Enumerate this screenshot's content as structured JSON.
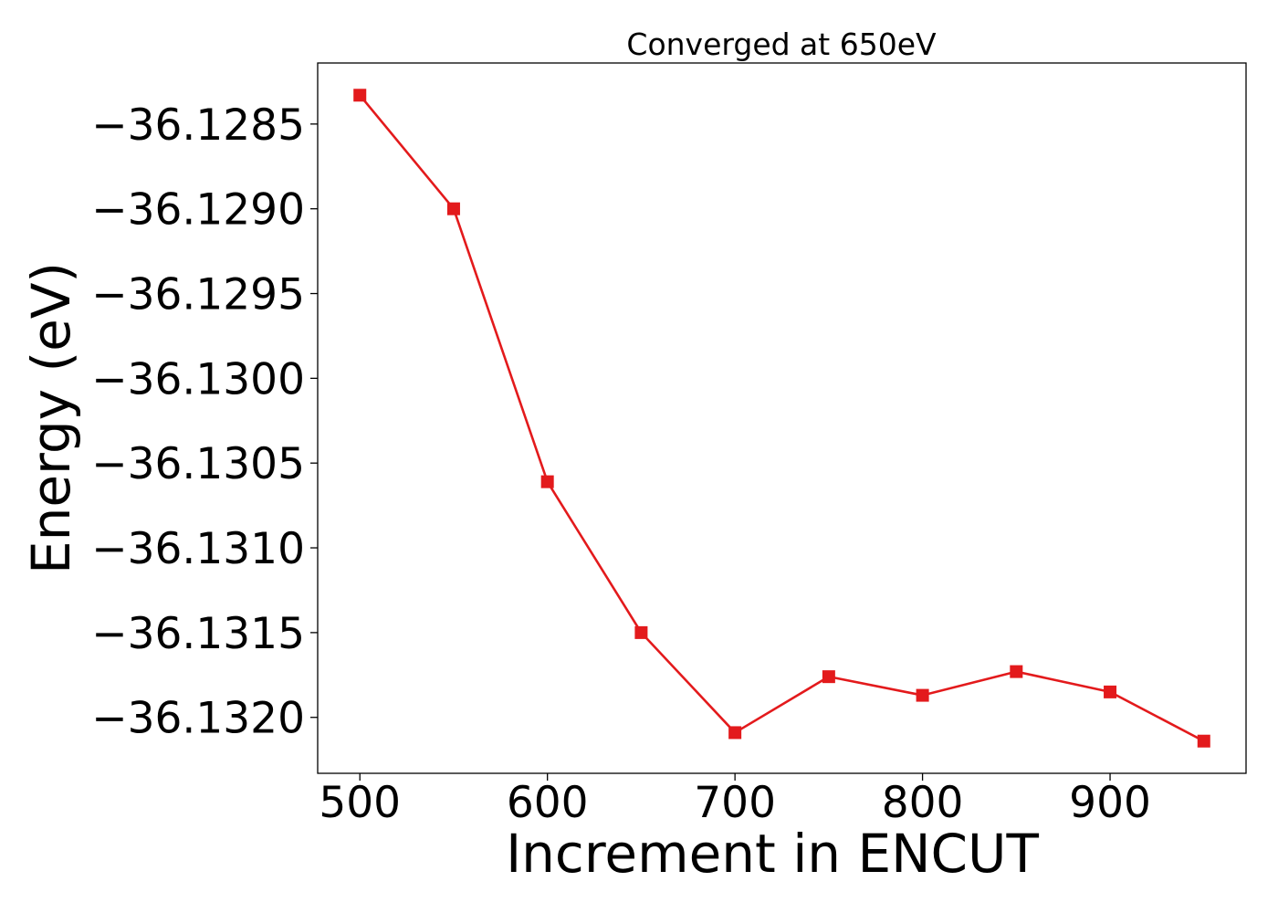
{
  "chart_data": {
    "type": "line",
    "title": "Converged at 650eV",
    "xlabel": "Increment in ENCUT",
    "ylabel": "Energy (eV)",
    "x": [
      500,
      550,
      600,
      650,
      700,
      750,
      800,
      850,
      900,
      950
    ],
    "series": [
      {
        "values": [
          -36.12833,
          -36.129,
          -36.13061,
          -36.1315,
          -36.13209,
          -36.13176,
          -36.13187,
          -36.13173,
          -36.13185,
          -36.13214
        ],
        "color": "#e31a1c",
        "marker": "square"
      }
    ],
    "xlim": [
      477.5,
      972.5
    ],
    "ylim": [
      -36.13233,
      -36.12814
    ],
    "xticks": [
      500,
      600,
      700,
      800,
      900
    ],
    "xtick_labels": [
      "500",
      "600",
      "700",
      "800",
      "900"
    ],
    "yticks": [
      -36.1285,
      -36.129,
      -36.1295,
      -36.13,
      -36.1305,
      -36.131,
      -36.1315,
      -36.132
    ],
    "ytick_labels": [
      "−36.1285",
      "−36.1290",
      "−36.1295",
      "−36.1300",
      "−36.1305",
      "−36.1310",
      "−36.1315",
      "−36.1320"
    ],
    "grid": false,
    "legend": "none"
  }
}
